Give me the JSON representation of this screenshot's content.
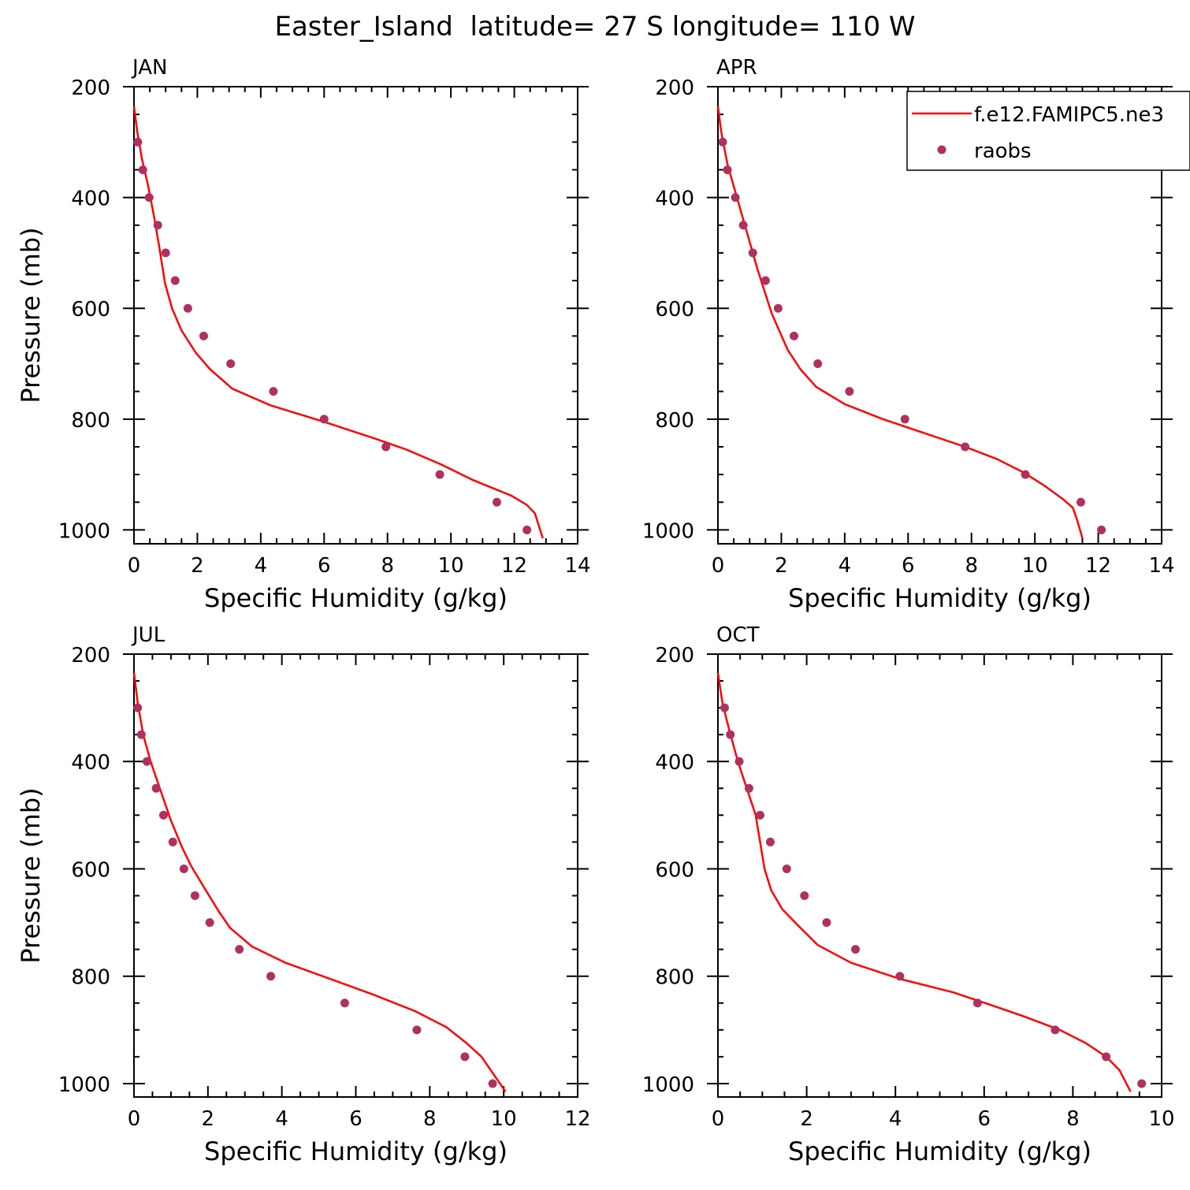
{
  "figure": {
    "title": "Easter_Island  latitude= 27 S longitude= 110 W"
  },
  "legend": {
    "model_label": "f.e12.FAMIPC5.ne3",
    "obs_label": "raobs",
    "line_color": "#ff0000",
    "marker_color": "#b03060"
  },
  "chart_data": [
    {
      "type": "line",
      "month": "JAN",
      "xlabel": "Specific Humidity (g/kg)",
      "ylabel": "Pressure (mb)",
      "xlim": [
        0,
        14
      ],
      "ylim": [
        1025,
        200
      ],
      "xticks": [
        0,
        2,
        4,
        6,
        8,
        10,
        12,
        14
      ],
      "yticks": [
        200,
        400,
        600,
        800,
        1000
      ],
      "series": [
        {
          "kind": "line",
          "points": [
            [
              0.0,
              235
            ],
            [
              0.1,
              280
            ],
            [
              0.25,
              330
            ],
            [
              0.45,
              380
            ],
            [
              0.62,
              430
            ],
            [
              0.8,
              490
            ],
            [
              0.98,
              555
            ],
            [
              1.2,
              600
            ],
            [
              1.5,
              640
            ],
            [
              1.95,
              680
            ],
            [
              2.4,
              710
            ],
            [
              3.1,
              745
            ],
            [
              4.3,
              775
            ],
            [
              6.0,
              805
            ],
            [
              7.6,
              835
            ],
            [
              8.6,
              855
            ],
            [
              9.7,
              882
            ],
            [
              10.7,
              910
            ],
            [
              11.9,
              938
            ],
            [
              12.4,
              955
            ],
            [
              12.65,
              970
            ],
            [
              12.9,
              1015
            ]
          ]
        },
        {
          "kind": "scatter",
          "points": [
            [
              0.12,
              300
            ],
            [
              0.28,
              350
            ],
            [
              0.48,
              400
            ],
            [
              0.75,
              450
            ],
            [
              1.0,
              500
            ],
            [
              1.3,
              550
            ],
            [
              1.7,
              600
            ],
            [
              2.2,
              650
            ],
            [
              3.05,
              700
            ],
            [
              4.4,
              750
            ],
            [
              6.0,
              800
            ],
            [
              7.95,
              850
            ],
            [
              9.65,
              900
            ],
            [
              11.45,
              950
            ],
            [
              12.4,
              1000
            ]
          ]
        }
      ]
    },
    {
      "type": "line",
      "month": "APR",
      "xlabel": "Specific Humidity (g/kg)",
      "ylabel": "",
      "xlim": [
        0,
        14
      ],
      "ylim": [
        1025,
        200
      ],
      "xticks": [
        0,
        2,
        4,
        6,
        8,
        10,
        12,
        14
      ],
      "yticks": [
        200,
        400,
        600,
        800,
        1000
      ],
      "show_legend": true,
      "series": [
        {
          "kind": "line",
          "points": [
            [
              0.0,
              235
            ],
            [
              0.1,
              280
            ],
            [
              0.3,
              340
            ],
            [
              0.6,
              400
            ],
            [
              0.9,
              460
            ],
            [
              1.25,
              530
            ],
            [
              1.7,
              610
            ],
            [
              2.2,
              675
            ],
            [
              2.6,
              710
            ],
            [
              3.1,
              742
            ],
            [
              4.0,
              773
            ],
            [
              5.2,
              800
            ],
            [
              6.5,
              825
            ],
            [
              7.8,
              850
            ],
            [
              8.8,
              872
            ],
            [
              9.6,
              895
            ],
            [
              10.3,
              920
            ],
            [
              10.9,
              945
            ],
            [
              11.2,
              960
            ],
            [
              11.35,
              985
            ],
            [
              11.5,
              1015
            ]
          ]
        },
        {
          "kind": "scatter",
          "points": [
            [
              0.15,
              300
            ],
            [
              0.3,
              350
            ],
            [
              0.55,
              400
            ],
            [
              0.8,
              450
            ],
            [
              1.1,
              500
            ],
            [
              1.5,
              550
            ],
            [
              1.9,
              600
            ],
            [
              2.4,
              650
            ],
            [
              3.15,
              700
            ],
            [
              4.15,
              750
            ],
            [
              5.9,
              800
            ],
            [
              7.8,
              850
            ],
            [
              9.7,
              900
            ],
            [
              11.45,
              950
            ],
            [
              12.1,
              1000
            ]
          ]
        }
      ]
    },
    {
      "type": "line",
      "month": "JUL",
      "xlabel": "Specific Humidity (g/kg)",
      "ylabel": "Pressure (mb)",
      "xlim": [
        0,
        12
      ],
      "ylim": [
        1025,
        200
      ],
      "xticks": [
        0,
        2,
        4,
        6,
        8,
        10,
        12
      ],
      "yticks": [
        200,
        400,
        600,
        800,
        1000
      ],
      "series": [
        {
          "kind": "line",
          "points": [
            [
              0.0,
              235
            ],
            [
              0.1,
              290
            ],
            [
              0.25,
              350
            ],
            [
              0.45,
              400
            ],
            [
              0.7,
              450
            ],
            [
              1.0,
              510
            ],
            [
              1.3,
              560
            ],
            [
              1.55,
              595
            ],
            [
              1.9,
              635
            ],
            [
              2.3,
              680
            ],
            [
              2.6,
              710
            ],
            [
              3.2,
              745
            ],
            [
              4.1,
              775
            ],
            [
              5.3,
              805
            ],
            [
              6.5,
              835
            ],
            [
              7.6,
              865
            ],
            [
              8.45,
              895
            ],
            [
              9.0,
              925
            ],
            [
              9.4,
              950
            ],
            [
              9.65,
              975
            ],
            [
              10.05,
              1015
            ]
          ]
        },
        {
          "kind": "scatter",
          "points": [
            [
              0.1,
              300
            ],
            [
              0.2,
              350
            ],
            [
              0.35,
              400
            ],
            [
              0.6,
              450
            ],
            [
              0.8,
              500
            ],
            [
              1.05,
              550
            ],
            [
              1.35,
              600
            ],
            [
              1.65,
              650
            ],
            [
              2.05,
              700
            ],
            [
              2.85,
              750
            ],
            [
              3.7,
              800
            ],
            [
              5.7,
              850
            ],
            [
              7.65,
              900
            ],
            [
              8.95,
              950
            ],
            [
              9.7,
              1000
            ]
          ]
        }
      ]
    },
    {
      "type": "line",
      "month": "OCT",
      "xlabel": "Specific Humidity (g/kg)",
      "ylabel": "",
      "xlim": [
        0,
        10
      ],
      "ylim": [
        1025,
        200
      ],
      "xticks": [
        0,
        2,
        4,
        6,
        8,
        10
      ],
      "yticks": [
        200,
        400,
        600,
        800,
        1000
      ],
      "series": [
        {
          "kind": "line",
          "points": [
            [
              0.0,
              235
            ],
            [
              0.1,
              290
            ],
            [
              0.25,
              340
            ],
            [
              0.45,
              400
            ],
            [
              0.65,
              450
            ],
            [
              0.85,
              500
            ],
            [
              0.95,
              550
            ],
            [
              1.05,
              600
            ],
            [
              1.2,
              640
            ],
            [
              1.45,
              675
            ],
            [
              1.8,
              705
            ],
            [
              2.25,
              742
            ],
            [
              3.0,
              775
            ],
            [
              4.1,
              805
            ],
            [
              5.3,
              830
            ],
            [
              6.2,
              855
            ],
            [
              6.9,
              875
            ],
            [
              7.7,
              900
            ],
            [
              8.3,
              925
            ],
            [
              8.75,
              950
            ],
            [
              9.05,
              975
            ],
            [
              9.3,
              1015
            ]
          ]
        },
        {
          "kind": "scatter",
          "points": [
            [
              0.15,
              300
            ],
            [
              0.28,
              350
            ],
            [
              0.48,
              400
            ],
            [
              0.7,
              450
            ],
            [
              0.95,
              500
            ],
            [
              1.18,
              550
            ],
            [
              1.55,
              600
            ],
            [
              1.95,
              650
            ],
            [
              2.45,
              700
            ],
            [
              3.1,
              750
            ],
            [
              4.1,
              800
            ],
            [
              5.85,
              850
            ],
            [
              7.6,
              900
            ],
            [
              8.75,
              950
            ],
            [
              9.55,
              1000
            ]
          ]
        }
      ]
    }
  ]
}
